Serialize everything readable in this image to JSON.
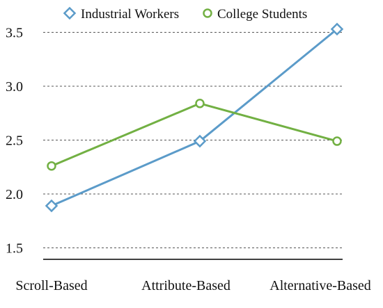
{
  "chart_data": {
    "type": "line",
    "title": "",
    "xlabel": "",
    "ylabel": "",
    "categories": [
      "Scroll-Based",
      "Attribute-Based",
      "Alternative-Based"
    ],
    "ylim": [
      1.5,
      3.5
    ],
    "yticks": [
      "1.5",
      "2.0",
      "2.5",
      "3.0",
      "3.5"
    ],
    "grid": true,
    "legend_position": "top",
    "series": [
      {
        "name": "Industrial Workers",
        "values": [
          1.89,
          2.49,
          3.53
        ],
        "color": "#5b9bc9",
        "marker": "diamond"
      },
      {
        "name": "College Students",
        "values": [
          2.26,
          2.84,
          2.49
        ],
        "color": "#72b043",
        "marker": "circle"
      }
    ]
  }
}
